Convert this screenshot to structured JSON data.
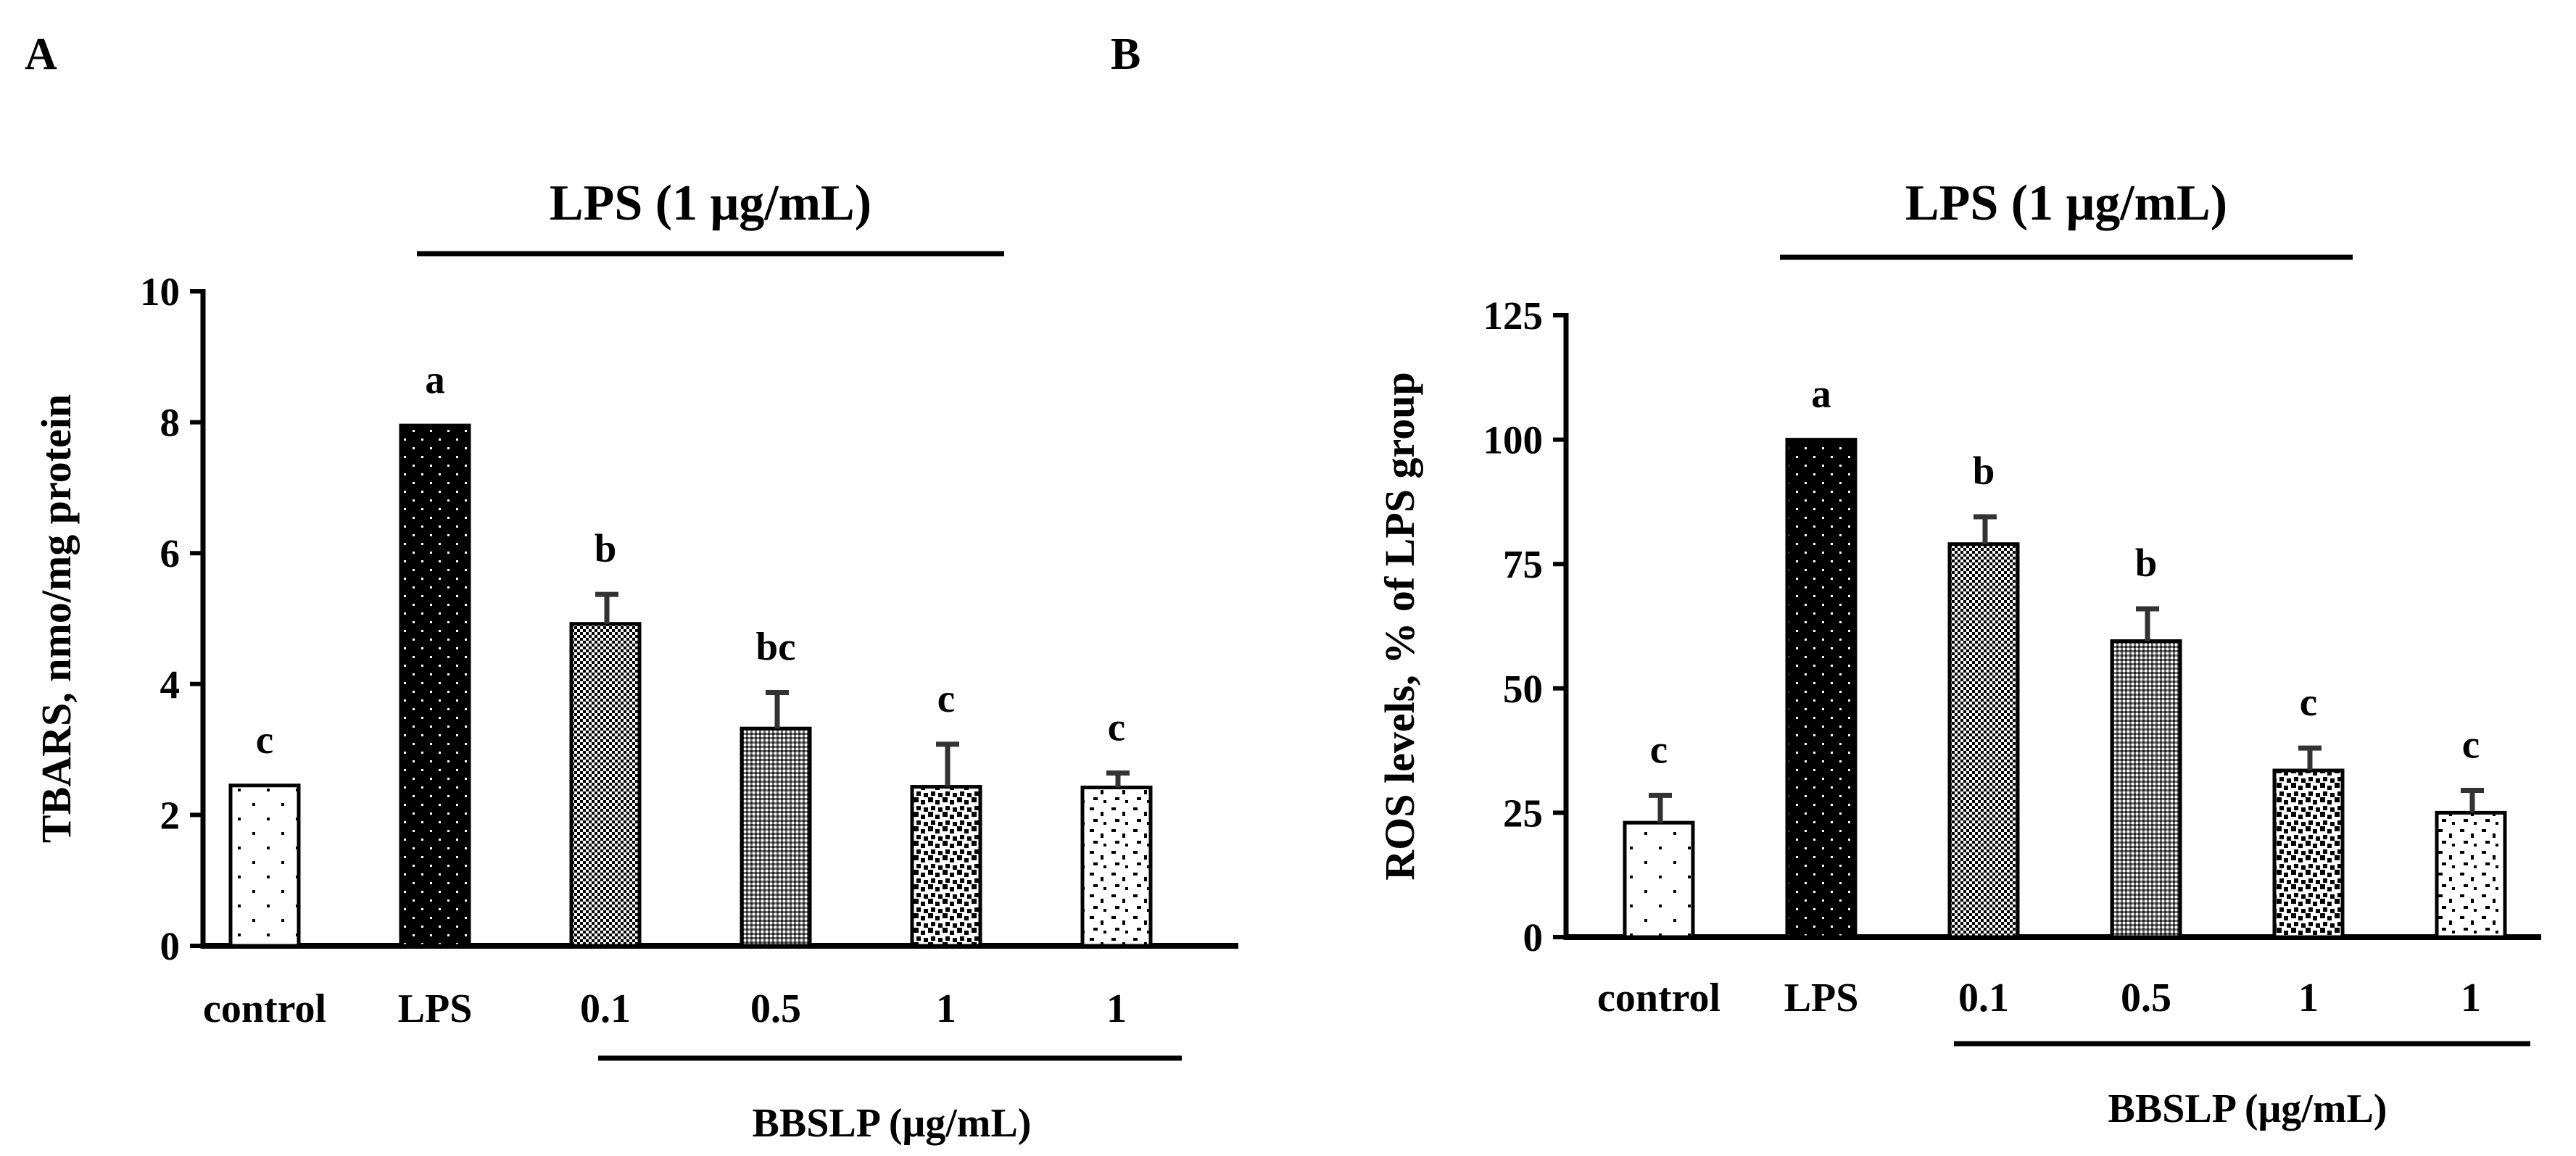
{
  "chart_data": [
    {
      "type": "bar",
      "panel": "A",
      "title": "LPS (1 μg/mL)",
      "ylabel": "TBARS, nmo/mg protein",
      "xlabel": "BBSLP (μg/mL)",
      "ylim": [
        0,
        10
      ],
      "yticks": [
        0,
        2,
        4,
        6,
        8,
        10
      ],
      "categories": [
        "control",
        "LPS",
        "0.1",
        "0.5",
        "1",
        "1"
      ],
      "values": [
        2.45,
        7.95,
        4.92,
        3.32,
        2.43,
        2.42
      ],
      "errors": [
        0,
        0,
        0.45,
        0.55,
        0.65,
        0.22
      ],
      "significance": [
        "c",
        "a",
        "b",
        "bc",
        "c",
        "c"
      ],
      "patterns": [
        "sparse-dots",
        "dark-dots",
        "fine-dots",
        "fine-grid",
        "dense-squares",
        "scattered-dashes"
      ],
      "grid": false
    },
    {
      "type": "bar",
      "panel": "B",
      "title": "LPS (1 μg/mL)",
      "ylabel": "ROS levels, % of LPS group",
      "xlabel": "BBSLP (μg/mL)",
      "ylim": [
        0,
        125
      ],
      "yticks": [
        0,
        25,
        50,
        75,
        100,
        125
      ],
      "categories": [
        "control",
        "LPS",
        "0.1",
        "0.5",
        "1",
        "1"
      ],
      "values": [
        23,
        100,
        79,
        59.5,
        33.5,
        25
      ],
      "errors": [
        5.5,
        0,
        5.5,
        6.5,
        4.5,
        4.5
      ],
      "significance": [
        "c",
        "a",
        "b",
        "b",
        "c",
        "c"
      ],
      "patterns": [
        "sparse-dots",
        "dark-dots",
        "fine-dots",
        "fine-grid",
        "dense-squares",
        "scattered-dashes"
      ],
      "grid": false
    }
  ]
}
